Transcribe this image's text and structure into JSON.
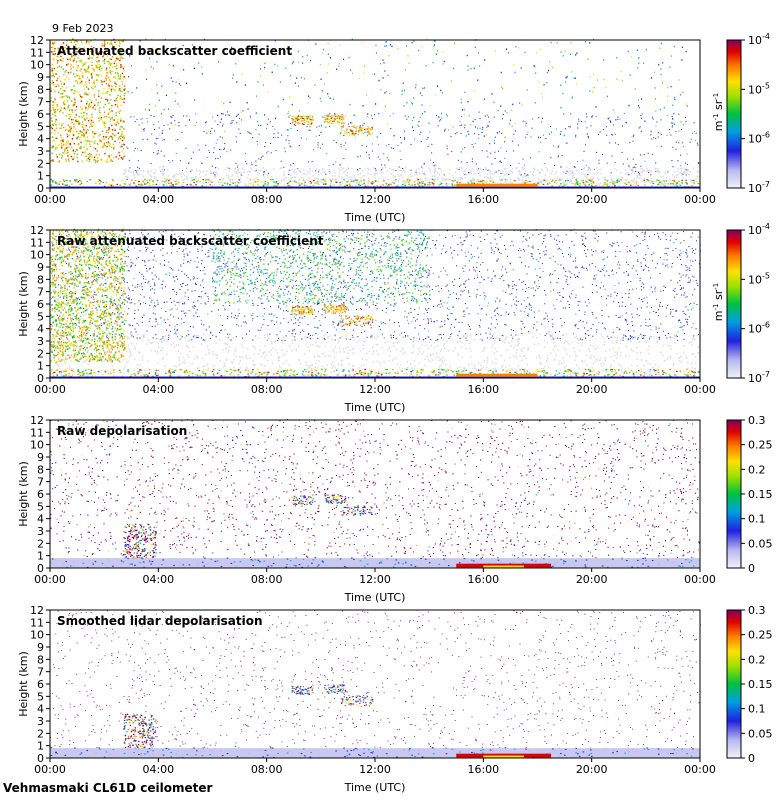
{
  "date": "9 Feb 2023",
  "footer": "Vehmasmaki CL61D ceilometer",
  "chart_data": [
    {
      "type": "heatmap",
      "title": "Attenuated backscatter coefficient",
      "xlabel": "Time (UTC)",
      "ylabel": "Height (km)",
      "xticks": [
        "00:00",
        "04:00",
        "08:00",
        "12:00",
        "16:00",
        "20:00",
        "00:00"
      ],
      "xlim": [
        0,
        24
      ],
      "ylim": [
        0,
        12
      ],
      "yticks": [
        "0",
        "1",
        "2",
        "3",
        "4",
        "5",
        "6",
        "7",
        "8",
        "9",
        "10",
        "11",
        "12"
      ],
      "colorbar": {
        "scale": "log",
        "ticks": [
          "10",
          "10",
          "10",
          "10"
        ],
        "exponents": [
          "-4",
          "-5",
          "-6",
          "-7"
        ],
        "values": [
          0.0001,
          1e-05,
          1e-06,
          1e-07
        ],
        "unit_main": "m",
        "unit_exp1": "-1",
        "unit_mid": " sr",
        "unit_exp2": "-1"
      }
    },
    {
      "type": "heatmap",
      "title": "Raw attenuated backscatter coefficient",
      "xlabel": "Time (UTC)",
      "ylabel": "Height (km)",
      "xticks": [
        "00:00",
        "04:00",
        "08:00",
        "12:00",
        "16:00",
        "20:00",
        "00:00"
      ],
      "xlim": [
        0,
        24
      ],
      "ylim": [
        0,
        12
      ],
      "yticks": [
        "0",
        "1",
        "2",
        "3",
        "4",
        "5",
        "6",
        "7",
        "8",
        "9",
        "10",
        "11",
        "12"
      ],
      "colorbar": {
        "scale": "log",
        "ticks": [
          "10",
          "10",
          "10",
          "10"
        ],
        "exponents": [
          "-4",
          "-5",
          "-6",
          "-7"
        ],
        "values": [
          0.0001,
          1e-05,
          1e-06,
          1e-07
        ],
        "unit_main": "m",
        "unit_exp1": "-1",
        "unit_mid": " sr",
        "unit_exp2": "-1"
      }
    },
    {
      "type": "heatmap",
      "title": "Raw depolarisation",
      "xlabel": "Time (UTC)",
      "ylabel": "Height (km)",
      "xticks": [
        "00:00",
        "04:00",
        "08:00",
        "12:00",
        "16:00",
        "20:00",
        "00:00"
      ],
      "xlim": [
        0,
        24
      ],
      "ylim": [
        0,
        12
      ],
      "yticks": [
        "0",
        "1",
        "2",
        "3",
        "4",
        "5",
        "6",
        "7",
        "8",
        "9",
        "10",
        "11",
        "12"
      ],
      "colorbar": {
        "scale": "linear",
        "ticks": [
          "0.3",
          "0.25",
          "0.2",
          "0.15",
          "0.1",
          "0.05",
          "0"
        ],
        "values": [
          0.3,
          0.25,
          0.2,
          0.15,
          0.1,
          0.05,
          0
        ]
      }
    },
    {
      "type": "heatmap",
      "title": "Smoothed lidar depolarisation",
      "xlabel": "Time (UTC)",
      "ylabel": "Height (km)",
      "xticks": [
        "00:00",
        "04:00",
        "08:00",
        "12:00",
        "16:00",
        "20:00",
        "00:00"
      ],
      "xlim": [
        0,
        24
      ],
      "ylim": [
        0,
        12
      ],
      "yticks": [
        "0",
        "1",
        "2",
        "3",
        "4",
        "5",
        "6",
        "7",
        "8",
        "9",
        "10",
        "11",
        "12"
      ],
      "colorbar": {
        "scale": "linear",
        "ticks": [
          "0.3",
          "0.25",
          "0.2",
          "0.15",
          "0.1",
          "0.05",
          "0"
        ],
        "values": [
          0.3,
          0.25,
          0.2,
          0.15,
          0.1,
          0.05,
          0
        ]
      }
    }
  ]
}
